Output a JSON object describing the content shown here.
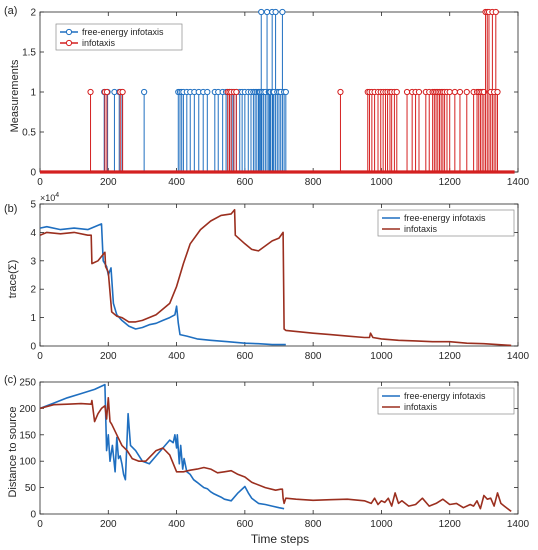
{
  "colors": {
    "fe": "#1f6fc0",
    "info": "#9b2f1f",
    "info_stem": "#d42020",
    "axis": "#262626",
    "grid": "#d9d9d9"
  },
  "xlabel": "Time steps",
  "chart_data": [
    {
      "type": "stem",
      "panel_label": "(a)",
      "ylabel": "Measurements",
      "xlim": [
        0,
        1400
      ],
      "ylim": [
        0,
        2
      ],
      "xticks": [
        0,
        200,
        400,
        600,
        800,
        1000,
        1200,
        1400
      ],
      "yticks": [
        0,
        0.5,
        1,
        1.5,
        2
      ],
      "ytick_labels": [
        "0",
        "0.5",
        "1",
        "1.5",
        "2"
      ],
      "legend_position": "top-left",
      "series": [
        {
          "name": "free-energy infotaxis",
          "color": "#1f6fc0",
          "x": [
            188,
            198,
            218,
            232,
            240,
            305,
            405,
            410,
            415,
            420,
            430,
            440,
            452,
            465,
            478,
            490,
            512,
            522,
            535,
            545,
            550,
            555,
            560,
            565,
            575,
            585,
            592,
            600,
            610,
            618,
            625,
            630,
            635,
            640,
            642,
            645,
            648,
            650,
            655,
            660,
            665,
            670,
            672,
            675,
            680,
            682,
            685,
            690,
            695,
            700,
            705,
            710,
            715,
            720
          ],
          "y": [
            1,
            1,
            1,
            1,
            1,
            1,
            1,
            1,
            1,
            1,
            1,
            1,
            1,
            1,
            1,
            1,
            1,
            1,
            1,
            1,
            1,
            1,
            1,
            1,
            1,
            1,
            1,
            1,
            1,
            1,
            1,
            1,
            1,
            1,
            1,
            1,
            2,
            1,
            1,
            1,
            2,
            1,
            1,
            1,
            2,
            1,
            1,
            2,
            1,
            1,
            1,
            2,
            1,
            1
          ]
        },
        {
          "name": "infotaxis",
          "color": "#d42020",
          "x": [
            148,
            190,
            196,
            235,
            242,
            550,
            555,
            560,
            568,
            575,
            880,
            960,
            965,
            972,
            980,
            990,
            998,
            1005,
            1012,
            1018,
            1025,
            1030,
            1038,
            1045,
            1075,
            1090,
            1100,
            1110,
            1130,
            1140,
            1150,
            1155,
            1160,
            1165,
            1170,
            1175,
            1180,
            1185,
            1192,
            1200,
            1215,
            1230,
            1250,
            1270,
            1280,
            1285,
            1290,
            1295,
            1300,
            1305,
            1310,
            1315,
            1320,
            1325,
            1330,
            1335,
            1340
          ],
          "y": [
            1,
            1,
            1,
            1,
            1,
            1,
            1,
            1,
            1,
            1,
            1,
            1,
            1,
            1,
            1,
            1,
            1,
            1,
            1,
            1,
            1,
            1,
            1,
            1,
            1,
            1,
            1,
            1,
            1,
            1,
            1,
            1,
            1,
            1,
            1,
            1,
            1,
            1,
            1,
            1,
            1,
            1,
            1,
            1,
            1,
            1,
            1,
            1,
            1,
            2,
            2,
            2,
            1,
            2,
            1,
            2,
            1
          ]
        }
      ]
    },
    {
      "type": "line",
      "panel_label": "(b)",
      "ylabel": "trace(Σ)",
      "exponent_label": "×10",
      "exponent_power": "4",
      "xlim": [
        0,
        1400
      ],
      "ylim": [
        0,
        5
      ],
      "xticks": [
        0,
        200,
        400,
        600,
        800,
        1000,
        1200,
        1400
      ],
      "yticks": [
        0,
        1,
        2,
        3,
        4,
        5
      ],
      "ytick_labels": [
        "0",
        "1",
        "2",
        "3",
        "4",
        "5"
      ],
      "legend_position": "top-right",
      "series": [
        {
          "name": "free-energy infotaxis",
          "color": "#1f6fc0",
          "x": [
            0,
            20,
            60,
            100,
            140,
            180,
            185,
            195,
            200,
            208,
            215,
            225,
            240,
            260,
            280,
            300,
            320,
            340,
            360,
            380,
            395,
            400,
            405,
            410,
            430,
            460,
            500,
            550,
            600,
            640,
            680,
            700,
            720
          ],
          "y": [
            4.15,
            4.2,
            4.1,
            4.15,
            4.1,
            4.3,
            3.0,
            2.8,
            2.5,
            2.75,
            1.5,
            1.1,
            0.9,
            0.7,
            0.6,
            0.65,
            0.75,
            0.8,
            0.9,
            1.0,
            1.1,
            1.4,
            0.8,
            0.4,
            0.35,
            0.25,
            0.2,
            0.15,
            0.1,
            0.08,
            0.05,
            0.05,
            0.05
          ]
        },
        {
          "name": "infotaxis",
          "color": "#9b2f1f",
          "x": [
            0,
            20,
            60,
            100,
            140,
            150,
            152,
            170,
            190,
            192,
            200,
            210,
            225,
            240,
            260,
            280,
            300,
            340,
            380,
            400,
            420,
            440,
            470,
            500,
            530,
            560,
            570,
            572,
            600,
            620,
            640,
            680,
            700,
            712,
            715,
            720,
            760,
            800,
            850,
            900,
            950,
            965,
            968,
            975,
            1000,
            1050,
            1100,
            1150,
            1200,
            1250,
            1300,
            1340,
            1380
          ],
          "y": [
            3.9,
            4.0,
            3.95,
            4.0,
            3.9,
            3.9,
            2.9,
            3.0,
            3.3,
            2.8,
            2.6,
            1.2,
            1.05,
            1.0,
            0.85,
            0.85,
            0.9,
            1.1,
            1.5,
            2.1,
            2.9,
            3.6,
            4.1,
            4.4,
            4.6,
            4.65,
            4.8,
            3.9,
            3.6,
            3.4,
            3.35,
            3.7,
            3.8,
            4.0,
            0.6,
            0.55,
            0.5,
            0.45,
            0.4,
            0.35,
            0.3,
            0.3,
            0.45,
            0.3,
            0.25,
            0.2,
            0.18,
            0.15,
            0.15,
            0.1,
            0.08,
            0.05,
            0.02
          ]
        }
      ]
    },
    {
      "type": "line",
      "panel_label": "(c)",
      "ylabel": "Distance to source",
      "xlim": [
        0,
        1400
      ],
      "ylim": [
        0,
        250
      ],
      "xticks": [
        0,
        200,
        400,
        600,
        800,
        1000,
        1200,
        1400
      ],
      "yticks": [
        0,
        50,
        100,
        150,
        200,
        250
      ],
      "ytick_labels": [
        "0",
        "50",
        "100",
        "150",
        "200",
        "250"
      ],
      "legend_position": "top-right",
      "series": [
        {
          "name": "free-energy infotaxis",
          "color": "#1f6fc0",
          "x": [
            0,
            40,
            80,
            120,
            160,
            190,
            195,
            200,
            205,
            212,
            220,
            225,
            230,
            235,
            240,
            245,
            250,
            258,
            265,
            280,
            300,
            320,
            340,
            360,
            380,
            390,
            395,
            400,
            402,
            408,
            412,
            418,
            422,
            430,
            440,
            450,
            460,
            470,
            480,
            490,
            500,
            510,
            520,
            530,
            540,
            560,
            580,
            600,
            610,
            620,
            640,
            660,
            680,
            700,
            715
          ],
          "y": [
            200,
            210,
            220,
            228,
            236,
            245,
            120,
            150,
            100,
            130,
            80,
            145,
            105,
            110,
            95,
            75,
            65,
            190,
            130,
            120,
            100,
            95,
            110,
            125,
            140,
            135,
            150,
            125,
            150,
            95,
            130,
            85,
            105,
            80,
            75,
            65,
            60,
            55,
            50,
            48,
            42,
            38,
            35,
            32,
            28,
            25,
            40,
            52,
            40,
            30,
            20,
            18,
            15,
            12,
            10
          ]
        },
        {
          "name": "infotaxis",
          "color": "#9b2f1f",
          "x": [
            0,
            40,
            80,
            120,
            150,
            152,
            160,
            170,
            180,
            190,
            195,
            200,
            205,
            210,
            225,
            240,
            255,
            270,
            290,
            310,
            340,
            360,
            380,
            400,
            420,
            440,
            460,
            480,
            500,
            520,
            540,
            560,
            580,
            600,
            620,
            660,
            690,
            705,
            710,
            712,
            715,
            720,
            750,
            800,
            850,
            900,
            950,
            970,
            980,
            990,
            1000,
            1010,
            1020,
            1030,
            1040,
            1050,
            1060,
            1080,
            1100,
            1120,
            1140,
            1160,
            1180,
            1200,
            1220,
            1240,
            1260,
            1270,
            1280,
            1290,
            1300,
            1310,
            1320,
            1330,
            1340,
            1350,
            1360,
            1380
          ],
          "y": [
            200,
            207,
            208,
            209,
            208,
            215,
            175,
            190,
            200,
            205,
            180,
            220,
            175,
            170,
            150,
            130,
            120,
            105,
            100,
            100,
            120,
            125,
            112,
            80,
            80,
            83,
            85,
            88,
            85,
            78,
            80,
            82,
            75,
            70,
            60,
            50,
            45,
            47,
            47,
            30,
            20,
            30,
            28,
            26,
            27,
            28,
            25,
            20,
            30,
            18,
            25,
            22,
            30,
            15,
            40,
            20,
            25,
            15,
            18,
            30,
            15,
            20,
            28,
            18,
            20,
            12,
            18,
            15,
            25,
            10,
            35,
            28,
            30,
            15,
            40,
            20,
            15,
            5
          ]
        }
      ]
    }
  ]
}
